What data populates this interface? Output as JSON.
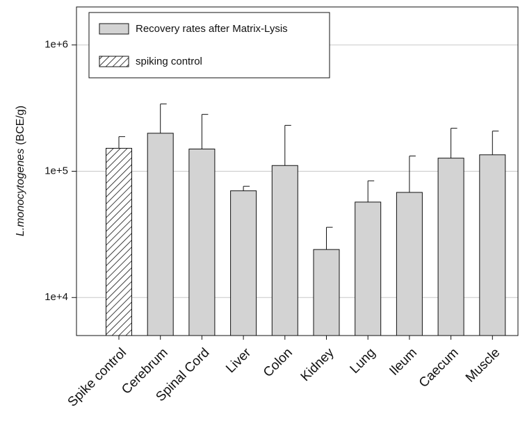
{
  "chart_data": {
    "type": "bar",
    "log_scale": true,
    "grid": true,
    "y_label_parts": [
      "L.monocytogenes",
      "(BCE/g)"
    ],
    "categories": [
      "Spike control",
      "Cerebrum",
      "Spinal Cord",
      "Liver",
      "Colon",
      "Kidney",
      "Lung",
      "Ileum",
      "Caecum",
      "Muscle"
    ],
    "series": [
      {
        "name": "Recovery rates after Matrix-Lysis",
        "color": "#d3d3d3",
        "hatch": false,
        "values": [
          null,
          200000,
          150000,
          70000,
          111000,
          24000,
          57000,
          68000,
          127000,
          135000
        ],
        "errors": [
          null,
          141000,
          132000,
          6000,
          120000,
          12000,
          27000,
          64000,
          92000,
          73000
        ]
      },
      {
        "name": "spiking control",
        "color": "#ffffff",
        "hatch": true,
        "values": [
          152000,
          null,
          null,
          null,
          null,
          null,
          null,
          null,
          null,
          null
        ],
        "errors": [
          36000,
          null,
          null,
          null,
          null,
          null,
          null,
          null,
          null,
          null
        ]
      }
    ],
    "ylim": [
      5000,
      2000000
    ],
    "yticks": [
      {
        "value": 10000,
        "label": "1e+4"
      },
      {
        "value": 100000,
        "label": "1e+5"
      },
      {
        "value": 1000000,
        "label": "1e+6"
      }
    ],
    "legend": "upper left"
  }
}
